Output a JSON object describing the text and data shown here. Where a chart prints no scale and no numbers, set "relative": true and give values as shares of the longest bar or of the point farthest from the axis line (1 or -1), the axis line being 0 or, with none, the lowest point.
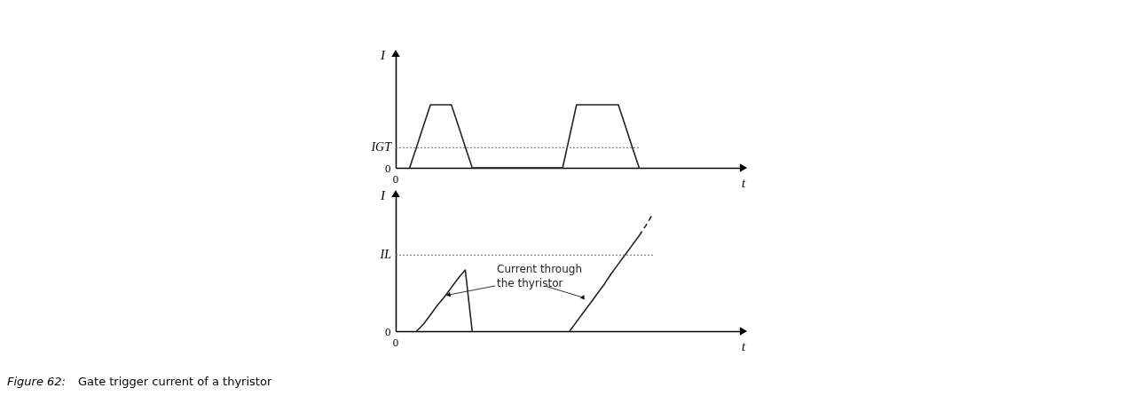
{
  "chart_data": [
    {
      "type": "line",
      "relative": true,
      "xlabel": "t",
      "ylabel": "I",
      "categories": [
        null,
        null,
        null,
        null,
        null,
        null,
        null,
        null,
        null,
        null,
        null,
        null,
        null,
        null,
        null,
        null,
        null,
        null,
        null,
        null,
        null,
        null,
        null,
        null,
        null,
        null,
        null,
        null,
        null,
        null,
        null,
        null,
        null,
        null,
        null,
        null,
        null,
        null,
        null,
        null,
        null,
        null,
        null,
        null,
        null,
        null,
        null,
        null,
        null,
        null,
        null
      ],
      "series": [
        {
          "color": "#222222",
          "values": [
            null,
            null,
            0,
            0.33,
            0.67,
            1,
            1,
            1,
            1,
            0.67,
            0.33,
            0,
            0,
            0,
            0,
            0,
            0,
            0,
            0,
            0,
            0,
            0,
            0,
            0,
            0,
            0.5,
            1,
            1,
            1,
            1,
            1,
            1,
            1,
            0.67,
            0.33,
            0,
            null,
            null,
            null,
            null,
            null,
            null,
            null,
            null,
            null,
            null,
            null,
            null,
            null,
            null,
            null
          ]
        }
      ],
      "ref_lines": [
        {
          "axis": "y",
          "value": 0.32,
          "label": "IGT",
          "line_style": "dotted",
          "color": "#666666"
        }
      ],
      "annotations": [
        "0",
        "0"
      ]
    },
    {
      "type": "line",
      "relative": true,
      "xlabel": "t",
      "ylabel": "I",
      "categories": [
        null,
        null,
        null,
        null,
        null,
        null,
        null,
        null,
        null,
        null,
        null,
        null,
        null,
        null,
        null,
        null,
        null,
        null,
        null,
        null,
        null,
        null,
        null,
        null,
        null,
        null,
        null,
        null,
        null,
        null,
        null,
        null,
        null,
        null,
        null,
        null,
        null,
        null,
        null,
        null,
        null,
        null,
        null,
        null,
        null,
        null,
        null,
        null,
        null,
        null,
        null
      ],
      "series": [
        {
          "color": "#222222",
          "values": [
            null,
            null,
            null,
            0,
            0.06,
            0.14,
            0.22,
            0.29,
            0.37,
            0.45,
            0.52,
            0,
            null,
            null,
            null,
            null,
            null,
            null,
            null,
            null,
            null,
            null,
            null,
            null,
            null,
            null,
            null,
            null,
            null,
            null,
            null,
            null,
            null,
            null,
            null,
            null,
            null,
            null,
            null,
            null,
            null,
            null,
            null,
            null,
            null,
            null,
            null,
            null,
            null,
            null,
            null
          ]
        },
        {
          "color": "#222222",
          "values": [
            null,
            null,
            null,
            null,
            null,
            null,
            null,
            null,
            null,
            null,
            null,
            null,
            null,
            null,
            null,
            null,
            null,
            null,
            null,
            null,
            null,
            null,
            null,
            null,
            null,
            0,
            0.08,
            0.16,
            0.24,
            0.32,
            0.4,
            0.49,
            0.57,
            0.65,
            0.73,
            0.81,
            null,
            null,
            null,
            null,
            null,
            null,
            null,
            null,
            null,
            null,
            null,
            null,
            null,
            null,
            null
          ]
        },
        {
          "color": "#222222",
          "line_style": "dashed",
          "values": [
            null,
            null,
            null,
            null,
            null,
            null,
            null,
            null,
            null,
            null,
            null,
            null,
            null,
            null,
            null,
            null,
            null,
            null,
            null,
            null,
            null,
            null,
            null,
            null,
            null,
            null,
            null,
            null,
            null,
            null,
            null,
            null,
            null,
            null,
            null,
            0.81,
            0.9,
            1,
            null,
            null,
            null,
            null,
            null,
            null,
            null,
            null,
            null,
            null,
            null,
            null,
            null
          ]
        }
      ],
      "ref_lines": [
        {
          "axis": "y",
          "value": 0.646,
          "label": "IL",
          "line_style": "dotted",
          "color": "#666666"
        }
      ],
      "annotations": [
        "0",
        "0",
        "Current through the thyristor",
        "Figure 62: Gate trigger current of a thyristor"
      ]
    }
  ]
}
